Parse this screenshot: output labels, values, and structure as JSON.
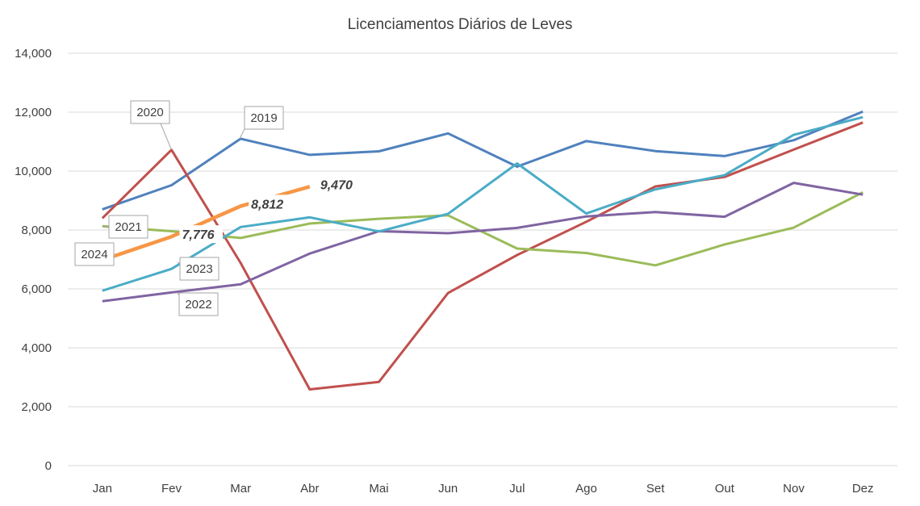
{
  "chart_data": {
    "type": "line",
    "title": "Licenciamentos Diários de Leves",
    "xlabel": "",
    "ylabel": "",
    "ylim": [
      0,
      14000
    ],
    "ytick_values": [
      0,
      2000,
      4000,
      6000,
      8000,
      10000,
      12000,
      14000
    ],
    "ytick_labels": [
      "0",
      "2,000",
      "4,000",
      "6,000",
      "8,000",
      "10,000",
      "12,000",
      "14,000"
    ],
    "grid": true,
    "legend": "none",
    "categories": [
      "Jan",
      "Fev",
      "Mar",
      "Abr",
      "Mai",
      "Jun",
      "Jul",
      "Ago",
      "Set",
      "Out",
      "Nov",
      "Dez"
    ],
    "series": [
      {
        "name": "2019",
        "color": "#4f81bd",
        "values": [
          8700,
          9520,
          11100,
          10550,
          10670,
          11280,
          10150,
          11020,
          10680,
          10510,
          11050,
          12020
        ]
      },
      {
        "name": "2020",
        "color": "#c0504d",
        "values": [
          8400,
          10720,
          6880,
          2590,
          2840,
          5860,
          7150,
          8280,
          9480,
          9800,
          10730,
          11650
        ]
      },
      {
        "name": "2021",
        "color": "#9bbb59",
        "values": [
          8130,
          7960,
          7730,
          8220,
          8380,
          8500,
          7370,
          7220,
          6800,
          7510,
          8080,
          9280
        ]
      },
      {
        "name": "2022",
        "color": "#8064a2",
        "values": [
          5580,
          5880,
          6160,
          7200,
          7960,
          7890,
          8070,
          8460,
          8610,
          8450,
          9600,
          9200
        ]
      },
      {
        "name": "2023",
        "color": "#4bacc6",
        "values": [
          5940,
          6680,
          8100,
          8430,
          7950,
          8550,
          10260,
          8560,
          9380,
          9860,
          11230,
          11830
        ]
      },
      {
        "name": "2024",
        "color": "#f79646",
        "values": [
          6980,
          7776,
          8812,
          9470,
          null,
          null,
          null,
          null,
          null,
          null,
          null,
          null
        ],
        "data_labels": [
          {
            "category": "Fev",
            "text": "7,776"
          },
          {
            "category": "Mar",
            "text": "8,812"
          },
          {
            "category": "Abr",
            "text": "9,470"
          }
        ]
      }
    ],
    "annotations": [
      "2019",
      "2020",
      "2021",
      "2022",
      "2023",
      "2024"
    ]
  }
}
